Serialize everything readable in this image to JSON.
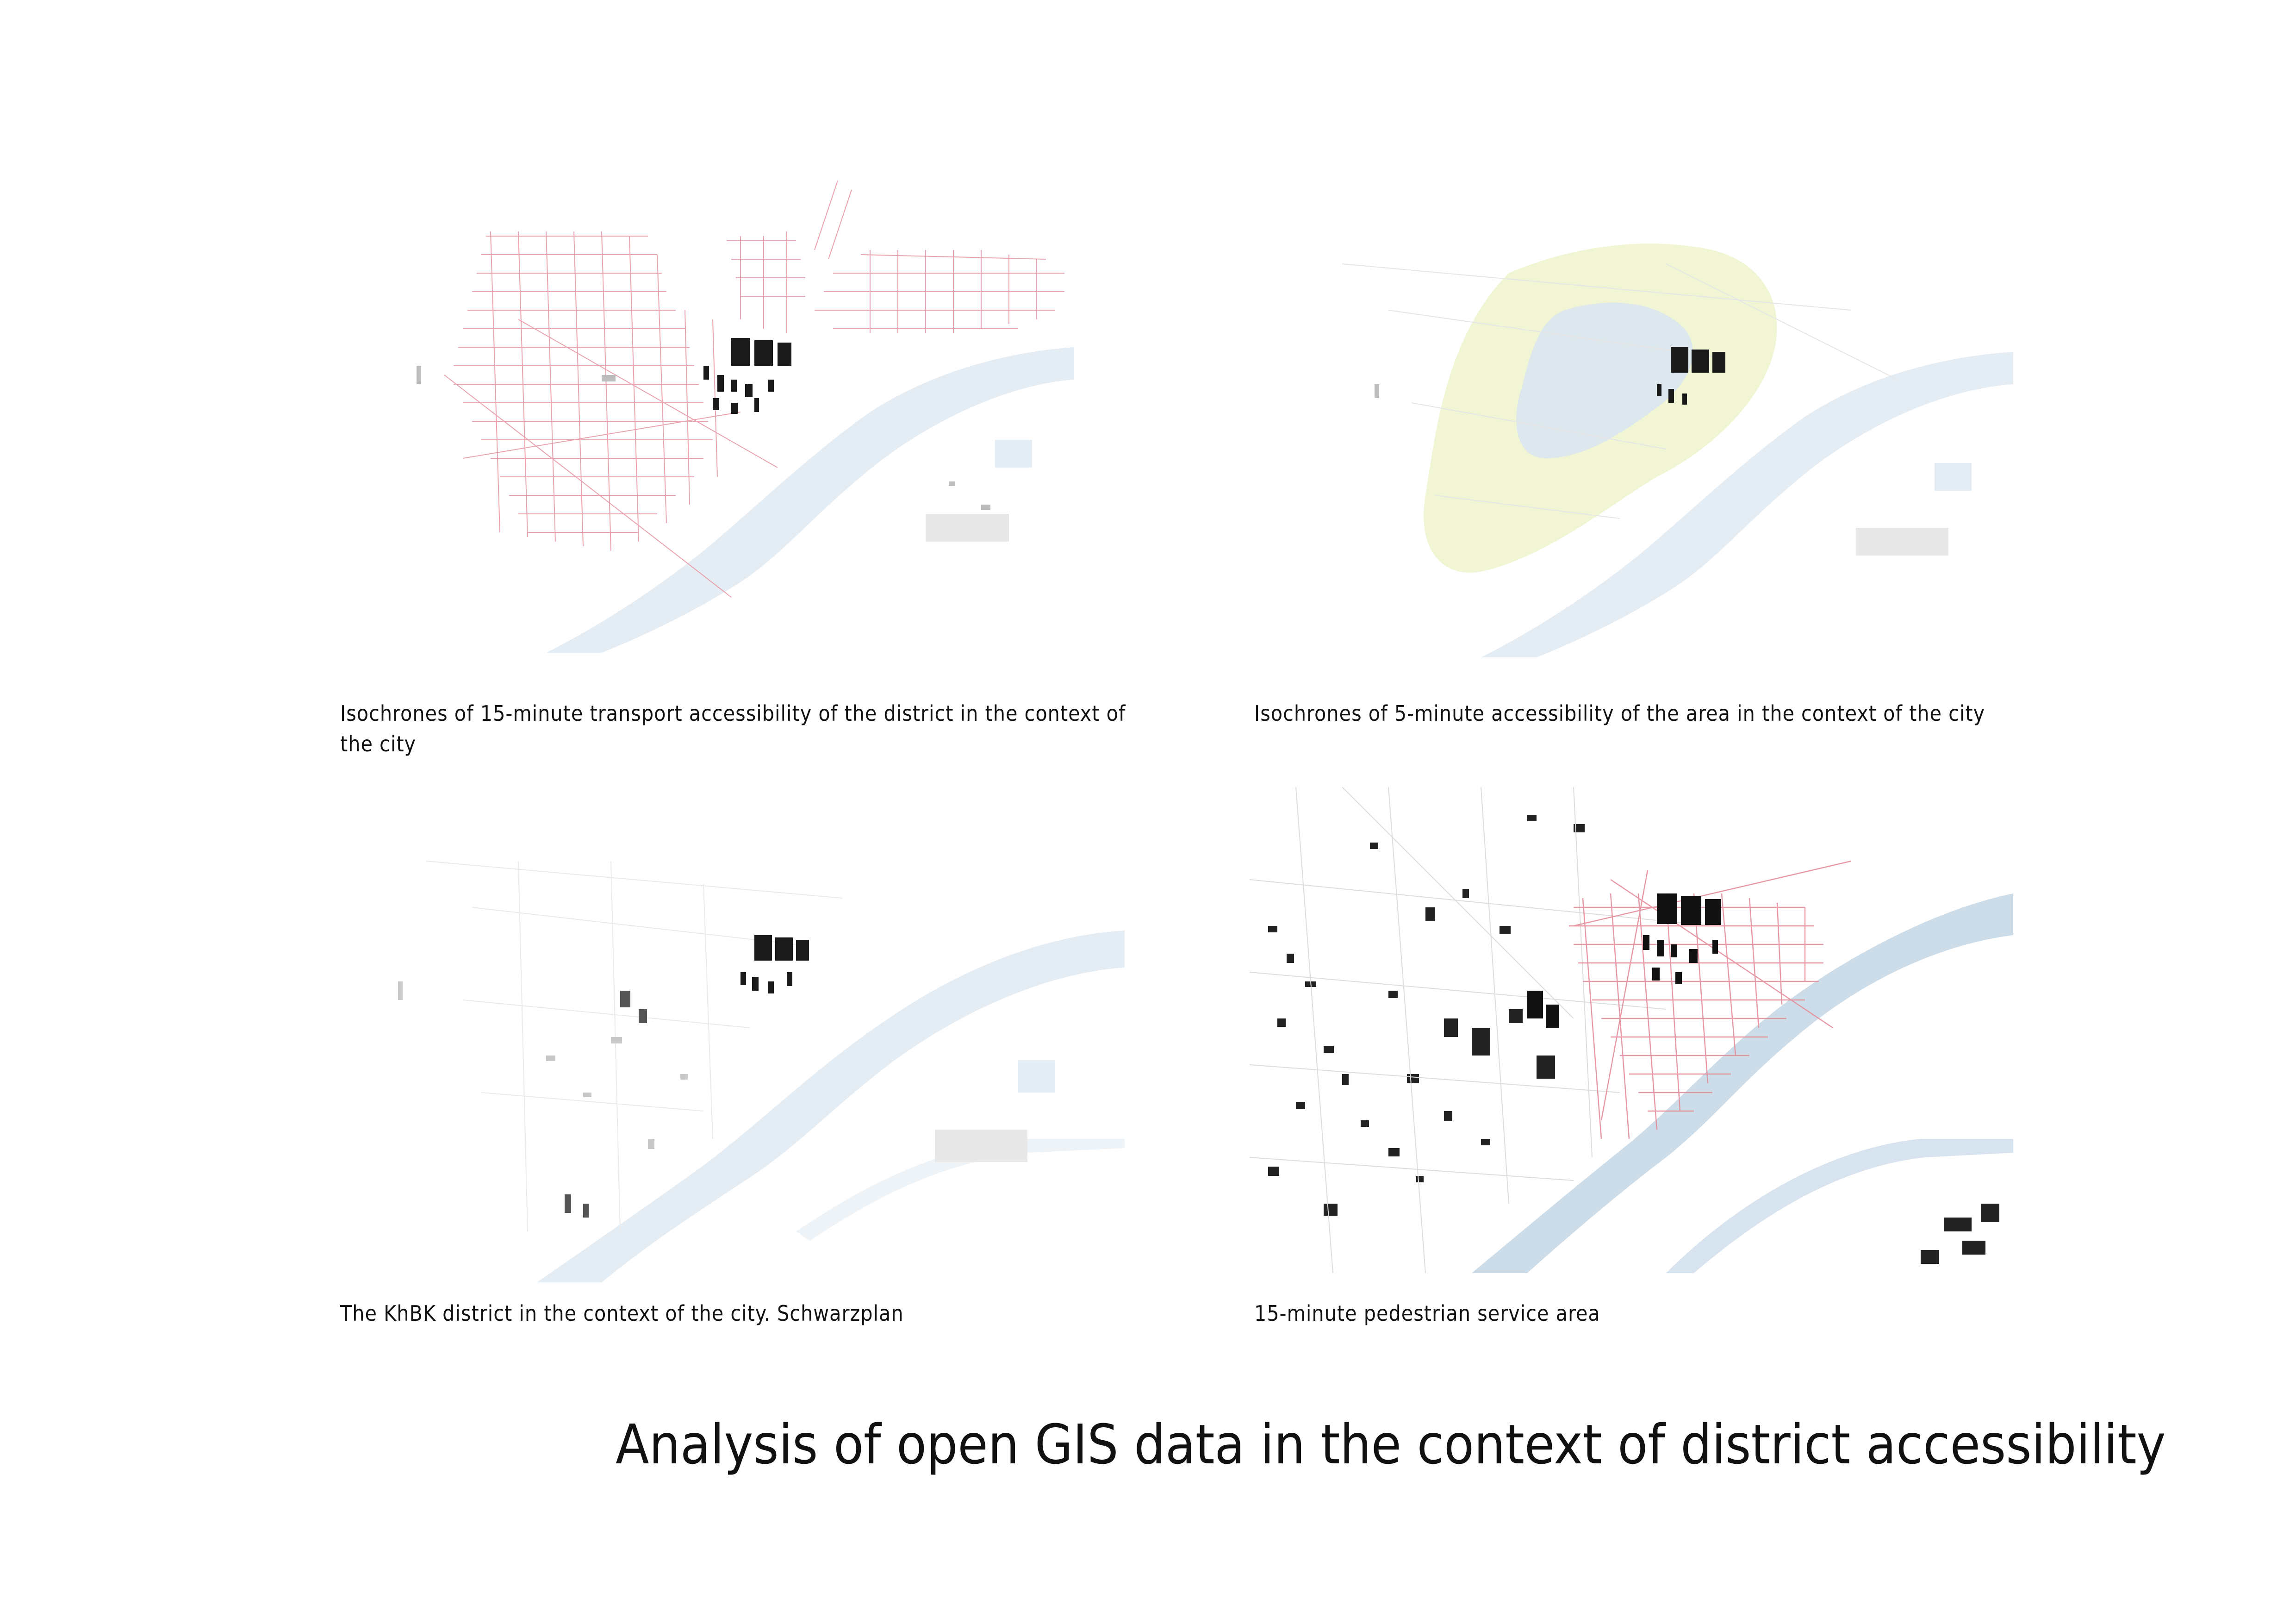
{
  "title": "Analysis of open GIS data in the context of district accessibility",
  "maps": [
    {
      "id": "transport-15min",
      "caption": "Isochrones of 15-minute transport accessibility of the district in the context of the city",
      "overlay": "road-network",
      "overlay_color": "#e79aa6"
    },
    {
      "id": "walk-5min",
      "caption": "Isochrones of 5-minute accessibility of the area in the context of the city",
      "overlay": "isochrone-zones",
      "overlay_color": "#eef2c8",
      "overlay_color_2": "#d9e7f0"
    },
    {
      "id": "schwarzplan",
      "caption": "The KhBK district in the context of the city. Schwarzplan",
      "overlay": "none"
    },
    {
      "id": "pedestrian-15min",
      "caption": "15-minute pedestrian service area",
      "overlay": "road-network",
      "overlay_color": "#e48f9c"
    }
  ],
  "colors": {
    "river": "#dfe8f1",
    "river_dark": "#c9d9e8",
    "buildings": "#1a1a1a",
    "buildings_light": "#bdbdbd",
    "roads_light": "#e6e6e6"
  }
}
